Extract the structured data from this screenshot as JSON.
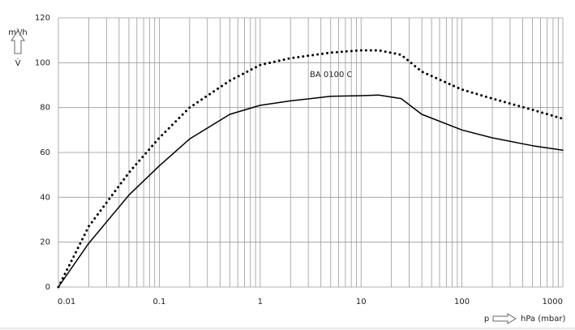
{
  "chart_data": {
    "type": "line",
    "annotation": "BA 0100 C",
    "y_label": "m³/h",
    "y_symbol": "V̇",
    "x_label": "p",
    "x_unit": "hPa (mbar)",
    "log_x": true,
    "grid": true,
    "xlim": [
      0.01,
      1000
    ],
    "xticks": [
      0.01,
      0.1,
      1,
      10,
      100,
      1000
    ],
    "ylim": [
      0,
      120
    ],
    "yticks": [
      0,
      20,
      40,
      60,
      80,
      100,
      120
    ],
    "x": [
      0.01,
      0.02,
      0.05,
      0.1,
      0.2,
      0.5,
      1,
      2,
      5,
      10,
      15,
      25,
      40,
      100,
      200,
      500,
      1000
    ],
    "series": [
      {
        "style": "solid",
        "color": "#000000",
        "values": [
          0,
          19.5,
          41,
          54,
          66,
          77,
          81,
          83,
          85,
          85.3,
          85.6,
          84,
          77,
          70,
          66.5,
          63,
          61
        ]
      },
      {
        "style": "dotted",
        "color": "#000000",
        "values": [
          0,
          27,
          51,
          66.5,
          80,
          92,
          99,
          102,
          104.5,
          105.5,
          105.5,
          103.5,
          96,
          88,
          84,
          79,
          75
        ]
      }
    ]
  }
}
